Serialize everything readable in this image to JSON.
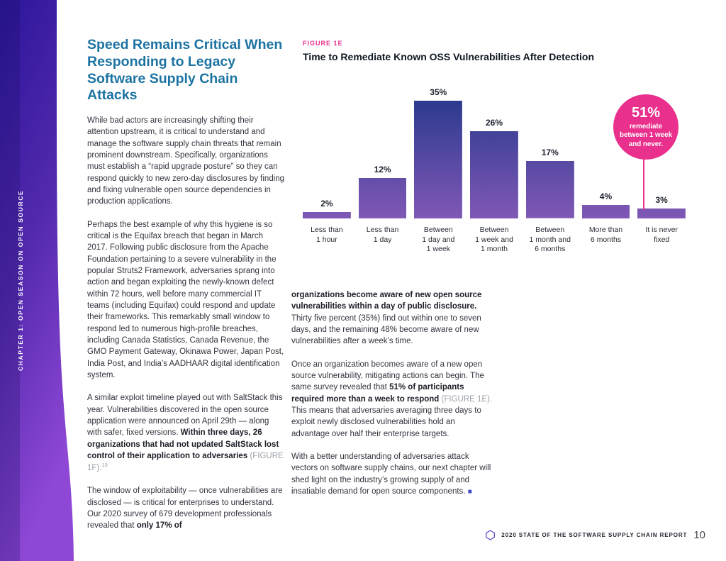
{
  "sidebar": {
    "chapter_label": "CHAPTER 1: OPEN SEASON ON OPEN SOURCE"
  },
  "left_column": {
    "heading": "Speed Remains Critical When Responding to Legacy Software Supply Chain Attacks",
    "para1": "While bad actors are increasingly shifting their attention upstream, it is critical to understand and manage the software supply chain threats that remain prominent downstream. Specifically, organizations must establish a “rapid upgrade posture” so they can respond quickly to new zero-day disclosures by finding and fixing vulnerable open source dependencies in production applications.",
    "para2": "Perhaps the best example of why this hygiene is so critical is the Equifax breach that began in March 2017. Following public disclosure from the Apache Foundation pertaining to a severe vulnerability in the popular Struts2 Framework, adversaries sprang into action and began exploiting the newly-known defect within 72 hours, well before many commercial IT teams (including Equifax) could respond and update their frameworks. This remarkably small window to respond led to numerous high-profile breaches, including Canada Statistics, Canada Revenue, the GMO Payment Gateway, Okinawa Power, Japan Post, India Post, and India’s AADHAAR digital identification system.",
    "para3_regular": "A similar exploit timeline played out with SaltStack this year. Vulnerabilities discovered in the open source application were announced on April 29th — along with safer, fixed versions. ",
    "para3_bold": "Within three days, 26 organizations that had not updated SaltStack lost control of their application to adversaries ",
    "para3_figref": "(FIGURE 1F).",
    "para3_footnote": "19",
    "para4_regular": "The window of exploitability — once vulnerabilities are disclosed — is critical for enterprises to understand. Our 2020 survey of 679 development professionals revealed that ",
    "para4_bold": "only 17% of"
  },
  "figure": {
    "label": "FIGURE 1E",
    "title": "Time to Remediate Known OSS Vulnerabilities After Detection",
    "callout": {
      "big": "51%",
      "line1": "remediate",
      "line2": "between 1 week",
      "line3": "and never."
    }
  },
  "chart_data": {
    "type": "bar",
    "title": "Time to Remediate Known OSS Vulnerabilities After Detection",
    "categories": [
      "Less than\n1 hour",
      "Less than\n1 day",
      "Between\n1 day and\n1 week",
      "Between\n1 week and\n1 month",
      "Between\n1 month and\n6 months",
      "More than\n6 months",
      "It is never\nfixed"
    ],
    "values": [
      2,
      12,
      35,
      26,
      17,
      4,
      3
    ],
    "value_labels": [
      "2%",
      "12%",
      "35%",
      "26%",
      "17%",
      "4%",
      "3%"
    ],
    "ylim": [
      0,
      35
    ],
    "grid": false,
    "legend": false,
    "annotation": "51% remediate between 1 week and never.",
    "bar_gradient_top": "#2c3a8e",
    "bar_gradient_bottom": "#8058b6"
  },
  "right_column": {
    "para1_bold": "organizations become aware of new open source vulnerabilities within a day of public disclosure. ",
    "para1_regular": "Thirty five percent (35%) find out within one to seven days, and the remaining 48% become aware of new vulnerabilities after a week’s time.",
    "para2_regular1": "Once an organization becomes aware of a new open source vulnerability, mitigating actions can begin. The same survey revealed that ",
    "para2_bold": "51% of participants required more than a week to respond ",
    "para2_figref": "(FIGURE 1E).",
    "para2_regular2": " This means that adversaries averaging three days to exploit newly disclosed vulnerabilities hold an advantage over half their enterprise targets.",
    "para3": "With a better understanding of adversaries attack vectors on software supply chains, our next chapter will shed light on the industry’s growing supply of and insatiable demand for open source components. ",
    "end_mark": "■"
  },
  "footer": {
    "report_title": "2020 STATE OF THE SOFTWARE SUPPLY CHAIN REPORT",
    "page_number": "10"
  },
  "colors": {
    "accent_pink": "#e9308c",
    "heading_blue": "#1c73a2",
    "bar_gradient_top": "#2c3a8e",
    "bar_gradient_bottom": "#8058b6",
    "sidebar_gradient_top": "#2b159a",
    "sidebar_gradient_bottom": "#8f48d6",
    "end_mark_blue": "#3c49c4",
    "logo_purple": "#5b4fc8"
  }
}
